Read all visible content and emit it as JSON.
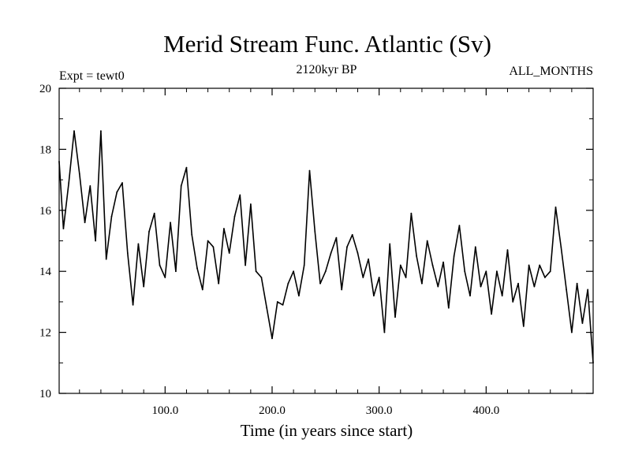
{
  "chart_data": {
    "type": "line",
    "title": "Merid Stream Func. Atlantic (Sv)",
    "subtitle_left": "Expt = tewt0",
    "subtitle_center": "2120kyr BP",
    "subtitle_right": "ALL_MONTHS",
    "xlabel": "Time (in years since start)",
    "ylabel": "",
    "xlim": [
      1,
      500
    ],
    "ylim": [
      10,
      20
    ],
    "x_ticks": [
      100,
      200,
      300,
      400
    ],
    "x_tick_labels": [
      "100.0",
      "200.0",
      "300.0",
      "400.0"
    ],
    "y_ticks": [
      10,
      12,
      14,
      16,
      18,
      20
    ],
    "y_tick_labels": [
      "10",
      "12",
      "14",
      "16",
      "18",
      "20"
    ],
    "series": [
      {
        "name": "Merid Stream Func. Atlantic",
        "x": [
          1,
          5,
          10,
          15,
          20,
          25,
          30,
          35,
          40,
          45,
          50,
          55,
          60,
          65,
          70,
          75,
          80,
          85,
          90,
          95,
          100,
          105,
          110,
          115,
          120,
          125,
          130,
          135,
          140,
          145,
          150,
          155,
          160,
          165,
          170,
          175,
          180,
          185,
          190,
          195,
          200,
          205,
          210,
          215,
          220,
          225,
          230,
          235,
          240,
          245,
          250,
          255,
          260,
          265,
          270,
          275,
          280,
          285,
          290,
          295,
          300,
          305,
          310,
          315,
          320,
          325,
          330,
          335,
          340,
          345,
          350,
          355,
          360,
          365,
          370,
          375,
          380,
          385,
          390,
          395,
          400,
          405,
          410,
          415,
          420,
          425,
          430,
          435,
          440,
          445,
          450,
          455,
          460,
          465,
          470,
          475,
          480,
          485,
          490,
          495,
          500
        ],
        "values": [
          17.6,
          15.4,
          16.9,
          18.6,
          17.2,
          15.6,
          16.8,
          15.0,
          18.6,
          14.4,
          15.8,
          16.6,
          16.9,
          14.6,
          12.9,
          14.9,
          13.5,
          15.3,
          15.9,
          14.2,
          13.8,
          15.6,
          14.0,
          16.8,
          17.4,
          15.2,
          14.1,
          13.4,
          15.0,
          14.8,
          13.6,
          15.4,
          14.6,
          15.8,
          16.5,
          14.2,
          16.2,
          14.0,
          13.8,
          12.8,
          11.8,
          13.0,
          12.9,
          13.6,
          14.0,
          13.2,
          14.2,
          17.3,
          15.3,
          13.6,
          14.0,
          14.6,
          15.1,
          13.4,
          14.8,
          15.2,
          14.6,
          13.8,
          14.4,
          13.2,
          13.8,
          12.0,
          14.9,
          12.5,
          14.2,
          13.8,
          15.9,
          14.5,
          13.6,
          15.0,
          14.2,
          13.5,
          14.3,
          12.8,
          14.5,
          15.5,
          14.0,
          13.2,
          14.8,
          13.5,
          14.0,
          12.6,
          14.0,
          13.2,
          14.7,
          13.0,
          13.6,
          12.2,
          14.2,
          13.5,
          14.2,
          13.8,
          14.0,
          16.1,
          14.8,
          13.4,
          12.0,
          13.6,
          12.3,
          13.4,
          11.0
        ]
      }
    ]
  }
}
